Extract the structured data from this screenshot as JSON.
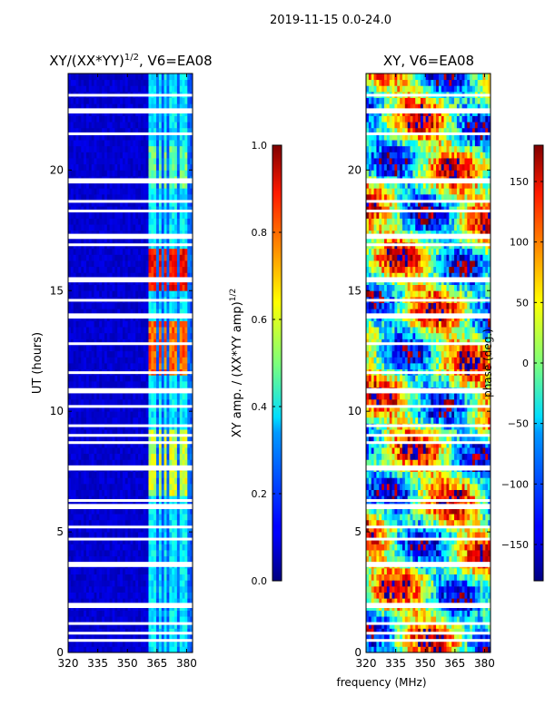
{
  "figure": {
    "suptitle": "2019-11-15 0.0-24.0",
    "xlabel": "frequency (MHz)"
  },
  "chart_data": [
    {
      "type": "heatmap",
      "title_main": "XY/(XX*YY)",
      "title_sup": "1/2",
      "title_rest": ", V6=EA08",
      "xlabel": "",
      "ylabel": "UT (hours)",
      "xlim": [
        320,
        383
      ],
      "ylim": [
        0,
        24
      ],
      "xticks": [
        "320",
        "335",
        "350",
        "365",
        "380"
      ],
      "xtick_values": [
        320,
        335,
        350,
        365,
        380
      ],
      "yticks": [
        "0",
        "5",
        "10",
        "15",
        "20"
      ],
      "ytick_values": [
        0,
        5,
        10,
        15,
        20
      ],
      "colorbar": {
        "label_main": "XY amp. / (XX*YY amp)",
        "label_sup": "1/2",
        "range": [
          0.0,
          1.0
        ],
        "ticks": [
          "0.0",
          "0.2",
          "0.4",
          "0.6",
          "0.8",
          "1.0"
        ],
        "tick_values": [
          0.0,
          0.2,
          0.4,
          0.6,
          0.8,
          1.0
        ]
      },
      "background_value": 0.08,
      "bright_channels_mhz": [
        362,
        364,
        367,
        369,
        372,
        374,
        377,
        379
      ],
      "bright_bands_hours": [
        [
          6.5,
          9.3,
          0.55
        ],
        [
          11.5,
          13.7,
          0.75
        ],
        [
          15.0,
          16.8,
          0.85
        ],
        [
          19.3,
          21.0,
          0.45
        ]
      ],
      "gaps_hours": [
        0.5,
        0.8,
        1.2,
        1.9,
        2.0,
        3.6,
        3.7,
        4.7,
        5.2,
        6.0,
        6.1,
        6.3,
        7.6,
        7.7,
        8.7,
        9.0,
        9.4,
        10.2,
        10.8,
        10.9,
        11.6,
        12.8,
        13.9,
        14.0,
        14.6,
        15.4,
        15.5,
        16.9,
        17.2,
        17.3,
        18.3,
        18.7,
        19.5,
        19.6,
        21.5,
        22.4,
        22.5,
        23.1
      ]
    },
    {
      "type": "heatmap",
      "title_main": "XY, V6=EA08",
      "xlabel": "frequency (MHz)",
      "ylabel": "",
      "xlim": [
        320,
        383
      ],
      "ylim": [
        0,
        24
      ],
      "xticks": [
        "320",
        "335",
        "350",
        "365",
        "380"
      ],
      "xtick_values": [
        320,
        335,
        350,
        365,
        380
      ],
      "yticks": [
        "0",
        "5",
        "10",
        "15",
        "20"
      ],
      "ytick_values": [
        0,
        5,
        10,
        15,
        20
      ],
      "colorbar": {
        "label_main": "phase (deg.)",
        "range": [
          -180,
          180
        ],
        "ticks": [
          "−150",
          "−100",
          "−50",
          "0",
          "50",
          "100",
          "150"
        ],
        "tick_values": [
          -150,
          -100,
          -50,
          0,
          50,
          100,
          150
        ]
      },
      "gaps_hours": [
        0.5,
        0.8,
        1.2,
        1.9,
        2.0,
        3.6,
        3.7,
        4.7,
        5.2,
        6.0,
        6.1,
        6.3,
        7.6,
        7.7,
        8.7,
        9.0,
        9.4,
        10.2,
        10.8,
        10.9,
        11.6,
        12.8,
        13.9,
        14.0,
        14.6,
        15.4,
        15.5,
        16.9,
        17.2,
        17.3,
        18.3,
        18.7,
        19.5,
        19.6,
        21.5,
        22.4,
        22.5,
        23.1
      ]
    }
  ]
}
